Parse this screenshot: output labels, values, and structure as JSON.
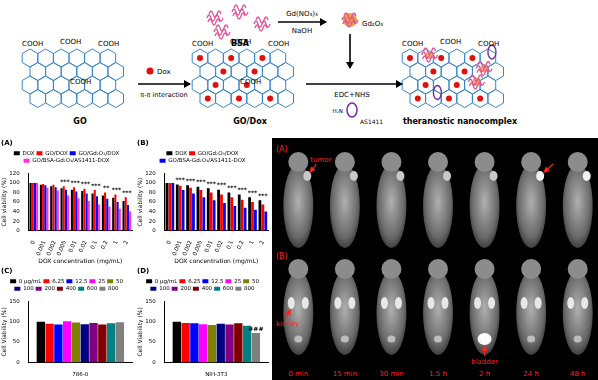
{
  "scheme": {
    "protein": "BSA",
    "precursor": "Gd(NO₃)₃",
    "base": "NaOH",
    "particle": "Gd₂O₃",
    "drug": "Dox",
    "loading": "π-π interaction",
    "coupling": "EDC+NHS",
    "aptamer": "AS1411",
    "amine": "H₂N",
    "sheets": [
      {
        "label": "GO",
        "groups": [
          "COOH",
          "COOH",
          "COOH",
          "COOH"
        ]
      },
      {
        "label": "GO/Dox",
        "groups": [
          "COOH",
          "COOH",
          "COOH",
          "COOH"
        ]
      },
      {
        "label": "theranostic nanocomplex",
        "groups": [
          "COOH",
          "COOH",
          "COOH"
        ]
      }
    ]
  },
  "chart_data": [
    {
      "type": "bar",
      "title": "(A)",
      "x_label": "DOX concentration (mg/mL)",
      "y_label": "Cell viability (%)",
      "categories": [
        "0",
        "0.001",
        "0.002",
        "0.005",
        "0.01",
        "0.02",
        "0.1",
        "0.2",
        "1",
        "2"
      ],
      "series": [
        {
          "name": "DOX",
          "color": "#000000",
          "values": [
            100,
            96,
            93,
            89,
            86,
            83,
            78,
            74,
            69,
            62
          ]
        },
        {
          "name": "GO/DOX",
          "color": "#ff0000",
          "values": [
            100,
            98,
            96,
            93,
            91,
            88,
            85,
            80,
            76,
            70
          ]
        },
        {
          "name": "GO/Gd₂O₃/DOX",
          "color": "#0000ff",
          "values": [
            100,
            95,
            91,
            86,
            82,
            78,
            72,
            67,
            60,
            54
          ]
        },
        {
          "name": "GO/BSA-Gd₂O₃/AS1411-DOX",
          "color": "#ff33cc",
          "values": [
            100,
            90,
            84,
            74,
            68,
            62,
            55,
            50,
            46,
            40
          ]
        }
      ],
      "annotations": [
        {
          "category": "0.005",
          "text": "***"
        },
        {
          "category": "0.01",
          "text": "***"
        },
        {
          "category": "0.02",
          "text": "***"
        },
        {
          "category": "0.1",
          "text": "***"
        },
        {
          "category": "0.2",
          "text": "**"
        },
        {
          "category": "1",
          "text": "***"
        },
        {
          "category": "2",
          "text": "***"
        }
      ],
      "ylim": [
        0,
        120
      ],
      "yticks": [
        0,
        20,
        40,
        60,
        80,
        100,
        120
      ],
      "grid": false,
      "legend": "top"
    },
    {
      "type": "bar",
      "title": "(B)",
      "x_label": "DOX concentration (mg/mL)",
      "y_label": "Cell viability (%)",
      "categories": [
        "0",
        "0.001",
        "0.002",
        "0.005",
        "0.01",
        "0.02",
        "0.1",
        "0.2",
        "1",
        "2"
      ],
      "series": [
        {
          "name": "DOX",
          "color": "#000000",
          "values": [
            100,
            97,
            95,
            92,
            89,
            86,
            80,
            76,
            70,
            64
          ]
        },
        {
          "name": "GO/Gd₂O₃/DOX",
          "color": "#ff0000",
          "values": [
            100,
            94,
            90,
            85,
            80,
            76,
            70,
            65,
            60,
            55
          ]
        },
        {
          "name": "GO/BSA-Gd₂O₃/AS1411-DOX",
          "color": "#0000ff",
          "values": [
            100,
            85,
            78,
            70,
            64,
            58,
            52,
            48,
            44,
            40
          ]
        }
      ],
      "annotations": [
        {
          "category": "0.001",
          "text": "***"
        },
        {
          "category": "0.002",
          "text": "***"
        },
        {
          "category": "0.005",
          "text": "***"
        },
        {
          "category": "0.01",
          "text": "***"
        },
        {
          "category": "0.02",
          "text": "***"
        },
        {
          "category": "0.1",
          "text": "***"
        },
        {
          "category": "0.2",
          "text": "***"
        },
        {
          "category": "1",
          "text": "***"
        },
        {
          "category": "2",
          "text": "***"
        }
      ],
      "ylim": [
        0,
        120
      ],
      "yticks": [
        0,
        20,
        40,
        60,
        80,
        100,
        120
      ],
      "grid": false,
      "legend": "top"
    },
    {
      "type": "bar",
      "title": "(C)",
      "y_label": "Cell Viability (%)",
      "categories": [
        "786-0"
      ],
      "series": [
        {
          "name": "0 μg/mL",
          "color": "#000000",
          "values": [
            100
          ]
        },
        {
          "name": "6.25",
          "color": "#ff0000",
          "values": [
            95
          ]
        },
        {
          "name": "12.5",
          "color": "#0000ff",
          "values": [
            93
          ]
        },
        {
          "name": "25",
          "color": "#ff00ff",
          "values": [
            101
          ]
        },
        {
          "name": "50",
          "color": "#808000",
          "values": [
            98
          ]
        },
        {
          "name": "100",
          "color": "#000080",
          "values": [
            94
          ]
        },
        {
          "name": "200",
          "color": "#800080",
          "values": [
            97
          ]
        },
        {
          "name": "400",
          "color": "#800000",
          "values": [
            93
          ]
        },
        {
          "name": "600",
          "color": "#008080",
          "values": [
            96
          ]
        },
        {
          "name": "800",
          "color": "#808080",
          "values": [
            99
          ]
        }
      ],
      "ylim": [
        0,
        150
      ],
      "yticks": [
        0,
        50,
        100,
        150
      ],
      "grid": false,
      "legend": "top"
    },
    {
      "type": "bar",
      "title": "(D)",
      "y_label": "Cell Viability (%)",
      "categories": [
        "NIH-3T3"
      ],
      "series": [
        {
          "name": "0 μg/mL",
          "color": "#000000",
          "values": [
            100
          ]
        },
        {
          "name": "6.25",
          "color": "#ff0000",
          "values": [
            97
          ]
        },
        {
          "name": "12.5",
          "color": "#0000ff",
          "values": [
            96
          ]
        },
        {
          "name": "25",
          "color": "#ff00ff",
          "values": [
            94
          ]
        },
        {
          "name": "50",
          "color": "#808000",
          "values": [
            92
          ]
        },
        {
          "name": "100",
          "color": "#000080",
          "values": [
            95
          ]
        },
        {
          "name": "200",
          "color": "#800080",
          "values": [
            93
          ]
        },
        {
          "name": "400",
          "color": "#800000",
          "values": [
            96
          ]
        },
        {
          "name": "600",
          "color": "#008080",
          "values": [
            90
          ]
        },
        {
          "name": "800",
          "color": "#808080",
          "values": [
            72
          ]
        }
      ],
      "annotations": [
        {
          "category": "NIH-3T3",
          "series": "800",
          "text": "###"
        }
      ],
      "ylim": [
        0,
        150
      ],
      "yticks": [
        0,
        50,
        100,
        150
      ],
      "grid": false,
      "legend": "top"
    }
  ],
  "mri": {
    "rows": [
      {
        "label": "(A)",
        "annotations": [
          "tumor"
        ]
      },
      {
        "label": "(B)",
        "annotations": [
          "kidney",
          "bladder"
        ]
      }
    ],
    "times": [
      "0 min",
      "15 min",
      "30 min",
      "1.5 h",
      "2 h",
      "24 h",
      "48 h"
    ]
  }
}
